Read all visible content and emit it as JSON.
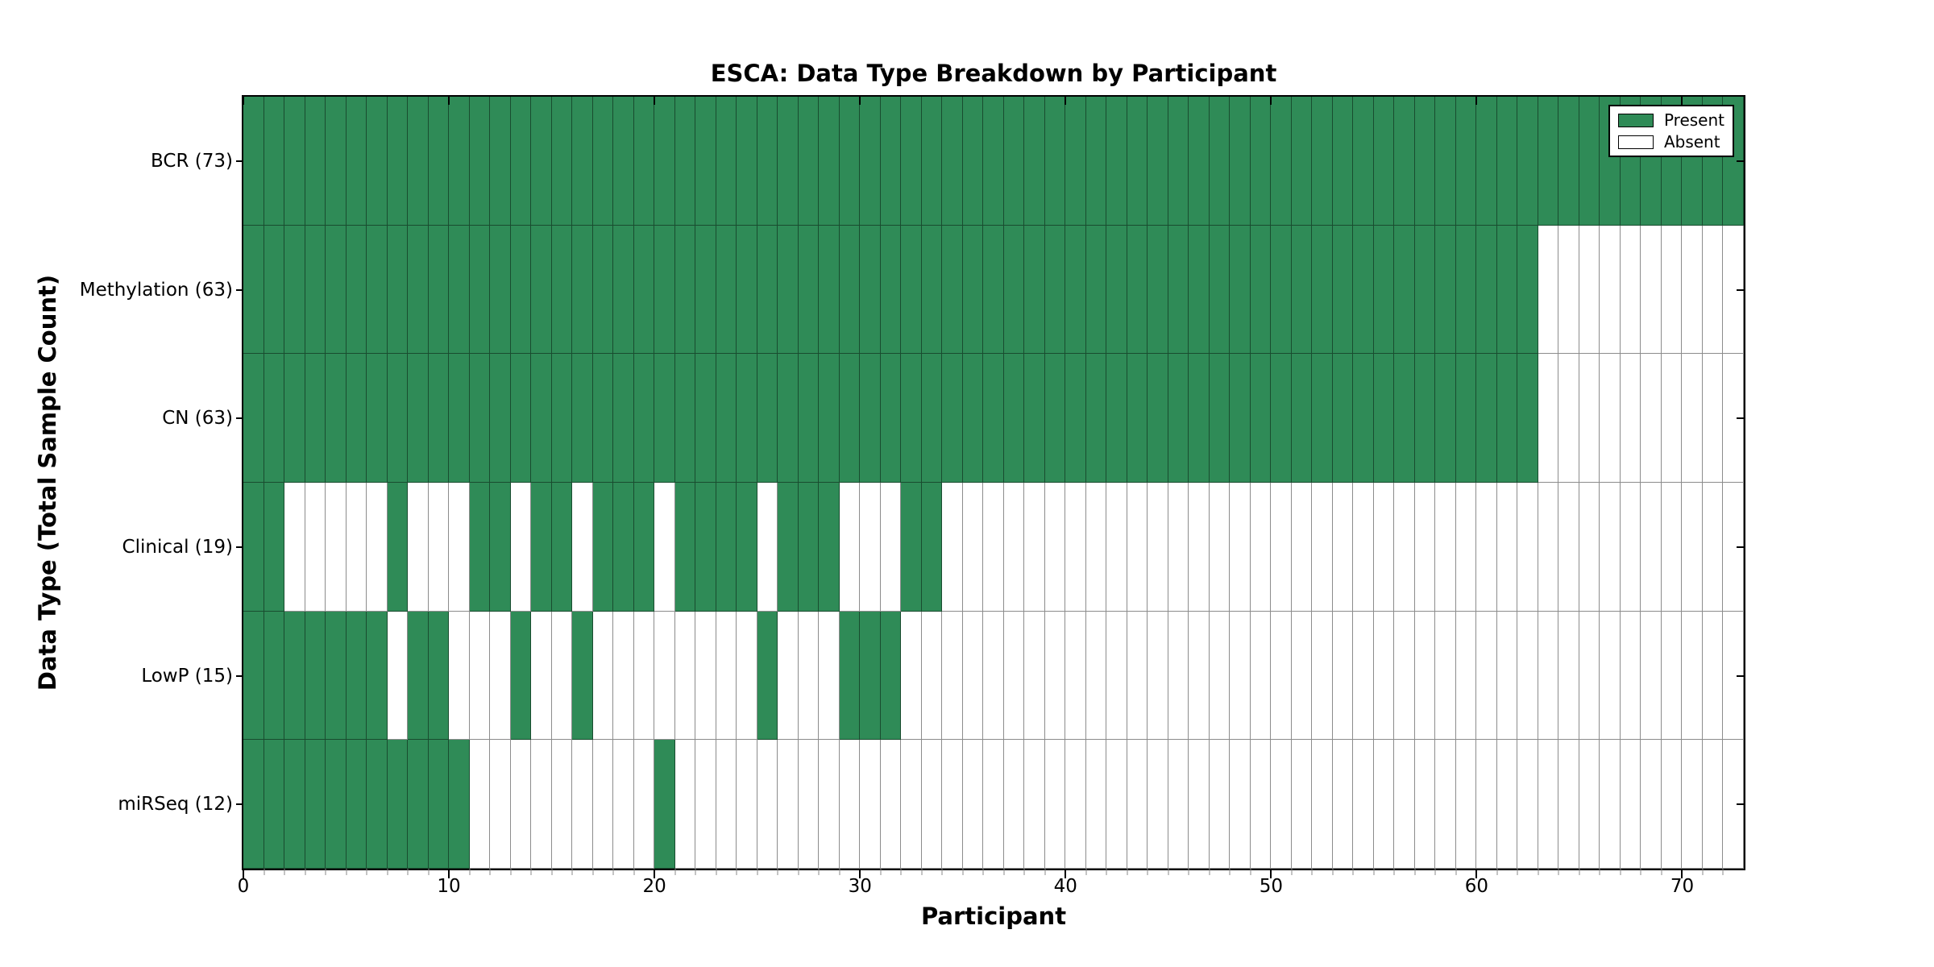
{
  "title": "ESCA: Data Type Breakdown by Participant",
  "axes": {
    "x_label": "Participant",
    "y_label": "Data Type (Total Sample Count)"
  },
  "legend": {
    "items": [
      {
        "label": "Present",
        "key": "present"
      },
      {
        "label": "Absent",
        "key": "absent"
      }
    ]
  },
  "colors": {
    "present": "#2f8b57",
    "absent": "#ffffff",
    "grid_line": "rgba(0,0,0,0.45)",
    "axis": "#000000"
  },
  "chart_data": {
    "type": "heatmap",
    "title": "ESCA: Data Type Breakdown by Participant",
    "xlabel": "Participant",
    "ylabel": "Data Type (Total Sample Count)",
    "x_range": [
      0,
      73
    ],
    "x_ticks": [
      0,
      10,
      20,
      30,
      40,
      50,
      60,
      70
    ],
    "n_participants": 73,
    "legend_entries": [
      "Present",
      "Absent"
    ],
    "legend_position": "upper right",
    "value_encoding": {
      "1": "Present",
      "0": "Absent"
    },
    "rows": [
      {
        "label": "BCR (73)",
        "data_type": "BCR",
        "total_samples": 73,
        "presence": "1111111111111111111111111111111111111111111111111111111111111111111111111"
      },
      {
        "label": "Methylation (63)",
        "data_type": "Methylation",
        "total_samples": 63,
        "presence": "1111111111111111111111111111111111111111111111111111111111111110000000000"
      },
      {
        "label": "CN (63)",
        "data_type": "CN",
        "total_samples": 63,
        "presence": "1111111111111111111111111111111111111111111111111111111111111110000000000"
      },
      {
        "label": "Clinical (19)",
        "data_type": "Clinical",
        "total_samples": 19,
        "presence": "1100000100011011011101111011100011000000000000000000000000000000000000000"
      },
      {
        "label": "LowP (15)",
        "data_type": "LowP",
        "total_samples": 15,
        "presence": "1111111011000100100000000100011100000000000000000000000000000000000000000"
      },
      {
        "label": "miRSeq (12)",
        "data_type": "miRSeq",
        "total_samples": 12,
        "presence": "1111111111100000000010000000000000000000000000000000000000000000000000000"
      }
    ]
  }
}
